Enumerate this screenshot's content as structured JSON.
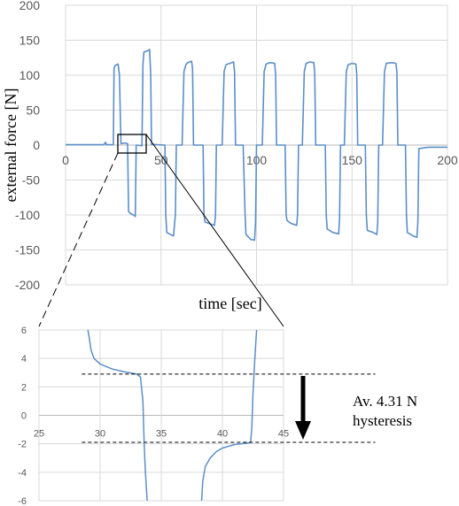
{
  "chart_data": [
    {
      "id": "main",
      "type": "line",
      "title": "",
      "xlabel": "time [sec]",
      "ylabel": "external force [N]",
      "xlim": [
        0,
        200
      ],
      "ylim": [
        -200,
        200
      ],
      "xticks": [
        0,
        50,
        100,
        150,
        200
      ],
      "yticks": [
        200,
        150,
        100,
        50,
        0,
        -50,
        -100,
        -150,
        -200
      ],
      "grid": true,
      "series_color": "#5b8fc8",
      "series": [
        {
          "values": [
            [
              0,
              0.5
            ],
            [
              20,
              0.5
            ],
            [
              21,
              4
            ],
            [
              21.3,
              0.5
            ],
            [
              25,
              0.5
            ],
            [
              25.4,
              110
            ],
            [
              26,
              114
            ],
            [
              27.5,
              116
            ],
            [
              28.2,
              100
            ],
            [
              29,
              2
            ],
            [
              31,
              3
            ],
            [
              32.5,
              2
            ],
            [
              33,
              -95
            ],
            [
              34,
              -98
            ],
            [
              35.5,
              -100
            ],
            [
              36.5,
              -102
            ],
            [
              37,
              0
            ],
            [
              40,
              -1
            ],
            [
              40.5,
              115
            ],
            [
              41,
              133
            ],
            [
              43,
              135
            ],
            [
              44,
              137
            ],
            [
              44.6,
              100
            ],
            [
              45,
              1
            ],
            [
              52,
              0
            ],
            [
              52.5,
              -100
            ],
            [
              53,
              -125
            ],
            [
              55,
              -128
            ],
            [
              56.5,
              -130
            ],
            [
              57.5,
              -100
            ],
            [
              58,
              0
            ],
            [
              61,
              0
            ],
            [
              62,
              105
            ],
            [
              63,
              115
            ],
            [
              64,
              118
            ],
            [
              66,
              120
            ],
            [
              66.5,
              110
            ],
            [
              67,
              0
            ],
            [
              72,
              0
            ],
            [
              72.5,
              -100
            ],
            [
              73,
              -110
            ],
            [
              75,
              -112
            ],
            [
              78,
              -115
            ],
            [
              78.5,
              -100
            ],
            [
              79,
              0
            ],
            [
              82,
              0
            ],
            [
              83,
              105
            ],
            [
              84,
              115
            ],
            [
              86,
              117
            ],
            [
              88,
              119
            ],
            [
              88.5,
              105
            ],
            [
              89,
              0
            ],
            [
              93,
              0
            ],
            [
              94,
              -100
            ],
            [
              94.5,
              -128
            ],
            [
              97,
              -135
            ],
            [
              99,
              -136
            ],
            [
              99.5,
              -110
            ],
            [
              100,
              0
            ],
            [
              103,
              0
            ],
            [
              104,
              105
            ],
            [
              105,
              116
            ],
            [
              107,
              118
            ],
            [
              109.5,
              117
            ],
            [
              110,
              100
            ],
            [
              110.5,
              0
            ],
            [
              115,
              0
            ],
            [
              115.5,
              -100
            ],
            [
              116,
              -108
            ],
            [
              118,
              -112
            ],
            [
              121,
              -115
            ],
            [
              121.5,
              -100
            ],
            [
              122,
              0
            ],
            [
              124,
              0
            ],
            [
              125,
              105
            ],
            [
              126,
              117
            ],
            [
              128,
              119
            ],
            [
              130,
              118
            ],
            [
              130.5,
              102
            ],
            [
              131,
              0
            ],
            [
              136,
              0
            ],
            [
              136.5,
              -100
            ],
            [
              137,
              -120
            ],
            [
              140,
              -125
            ],
            [
              143,
              -127
            ],
            [
              143.5,
              -105
            ],
            [
              144,
              0
            ],
            [
              146,
              0
            ],
            [
              147,
              105
            ],
            [
              148,
              115
            ],
            [
              150,
              117
            ],
            [
              152,
              116
            ],
            [
              152.5,
              102
            ],
            [
              153,
              0
            ],
            [
              157,
              0
            ],
            [
              157.5,
              -100
            ],
            [
              158,
              -122
            ],
            [
              161,
              -125
            ],
            [
              163,
              -128
            ],
            [
              163.5,
              -110
            ],
            [
              164,
              0
            ],
            [
              166,
              0
            ],
            [
              167,
              105
            ],
            [
              168,
              117
            ],
            [
              171,
              118
            ],
            [
              173,
              117
            ],
            [
              173.5,
              105
            ],
            [
              174,
              0
            ],
            [
              178,
              0
            ],
            [
              178.5,
              -100
            ],
            [
              179,
              -125
            ],
            [
              182,
              -130
            ],
            [
              184,
              -132
            ],
            [
              184.5,
              -110
            ],
            [
              185,
              -5
            ],
            [
              190,
              -3
            ],
            [
              200,
              -3
            ]
          ]
        }
      ]
    },
    {
      "id": "inset",
      "type": "line",
      "title": "",
      "xlabel": "",
      "ylabel": "",
      "xlim": [
        25,
        45
      ],
      "ylim": [
        -6,
        6
      ],
      "xticks": [
        25,
        30,
        35,
        40,
        45
      ],
      "yticks": [
        6,
        4,
        2,
        0,
        -2,
        -4,
        -6
      ],
      "grid": true,
      "series_color": "#5b8fc8",
      "series": [
        {
          "values": [
            [
              29.0,
              6.2
            ],
            [
              29.1,
              5.5
            ],
            [
              29.25,
              4.6
            ],
            [
              29.5,
              4.0
            ],
            [
              30,
              3.6
            ],
            [
              31,
              3.25
            ],
            [
              32,
              3.05
            ],
            [
              33,
              2.9
            ],
            [
              33.3,
              2.7
            ],
            [
              33.5,
              1.0
            ],
            [
              33.6,
              -2.0
            ],
            [
              33.7,
              -4.0
            ],
            [
              33.85,
              -6.2
            ]
          ]
        },
        {
          "values": [
            [
              38.3,
              -6.2
            ],
            [
              38.4,
              -4.6
            ],
            [
              38.6,
              -3.6
            ],
            [
              39,
              -3.0
            ],
            [
              39.5,
              -2.55
            ],
            [
              40,
              -2.3
            ],
            [
              41,
              -2.05
            ],
            [
              42,
              -1.95
            ],
            [
              42.3,
              -1.9
            ],
            [
              42.4,
              -1.0
            ],
            [
              42.5,
              1.5
            ],
            [
              42.65,
              4.0
            ],
            [
              42.8,
              6.2
            ]
          ]
        }
      ],
      "reference_lines": [
        2.9,
        -1.9
      ]
    }
  ],
  "annotation": {
    "line1": "Av. 4.31 N",
    "line2": "hysteresis"
  }
}
